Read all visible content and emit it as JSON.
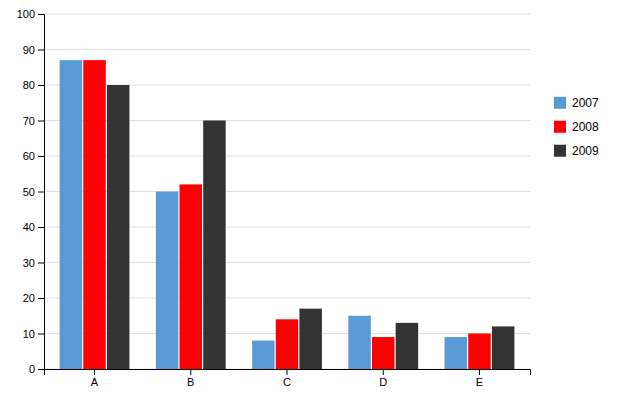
{
  "chart_data": {
    "type": "bar",
    "categories": [
      "A",
      "B",
      "C",
      "D",
      "E"
    ],
    "series": [
      {
        "name": "2007",
        "color": "#5B9BD5",
        "values": [
          87,
          50,
          8,
          15,
          9
        ]
      },
      {
        "name": "2008",
        "color": "#FF0000",
        "values": [
          87,
          52,
          14,
          9,
          10
        ]
      },
      {
        "name": "2009",
        "color": "#333333",
        "values": [
          80,
          70,
          17,
          13,
          12
        ]
      }
    ],
    "ylim": [
      0,
      100
    ],
    "yticks": [
      0,
      10,
      20,
      30,
      40,
      50,
      60,
      70,
      80,
      90,
      100
    ],
    "grid": true,
    "legend": "right"
  }
}
